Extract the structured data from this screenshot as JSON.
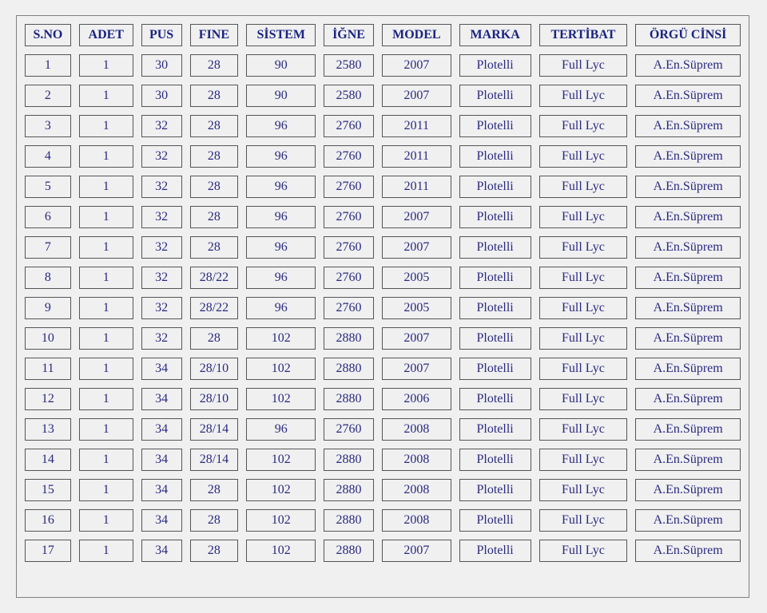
{
  "colors": {
    "header_text": "#1a2380",
    "cell_text": "#2a2a80",
    "cell_border": "#555555",
    "background": "#f0f0f0"
  },
  "table": {
    "headers": [
      "S.NO",
      "ADET",
      "PUS",
      "FINE",
      "SİSTEM",
      "İĞNE",
      "MODEL",
      "MARKA",
      "TERTİBAT",
      "ÖRGÜ CİNSİ"
    ],
    "rows": [
      [
        "1",
        "1",
        "30",
        "28",
        "90",
        "2580",
        "2007",
        "Plotelli",
        "Full Lyc",
        "A.En.Süprem"
      ],
      [
        "2",
        "1",
        "30",
        "28",
        "90",
        "2580",
        "2007",
        "Plotelli",
        "Full Lyc",
        "A.En.Süprem"
      ],
      [
        "3",
        "1",
        "32",
        "28",
        "96",
        "2760",
        "2011",
        "Plotelli",
        "Full Lyc",
        "A.En.Süprem"
      ],
      [
        "4",
        "1",
        "32",
        "28",
        "96",
        "2760",
        "2011",
        "Plotelli",
        "Full Lyc",
        "A.En.Süprem"
      ],
      [
        "5",
        "1",
        "32",
        "28",
        "96",
        "2760",
        "2011",
        "Plotelli",
        "Full Lyc",
        "A.En.Süprem"
      ],
      [
        "6",
        "1",
        "32",
        "28",
        "96",
        "2760",
        "2007",
        "Plotelli",
        "Full Lyc",
        "A.En.Süprem"
      ],
      [
        "7",
        "1",
        "32",
        "28",
        "96",
        "2760",
        "2007",
        "Plotelli",
        "Full Lyc",
        "A.En.Süprem"
      ],
      [
        "8",
        "1",
        "32",
        "28/22",
        "96",
        "2760",
        "2005",
        "Plotelli",
        "Full Lyc",
        "A.En.Süprem"
      ],
      [
        "9",
        "1",
        "32",
        "28/22",
        "96",
        "2760",
        "2005",
        "Plotelli",
        "Full Lyc",
        "A.En.Süprem"
      ],
      [
        "10",
        "1",
        "32",
        "28",
        "102",
        "2880",
        "2007",
        "Plotelli",
        "Full Lyc",
        "A.En.Süprem"
      ],
      [
        "11",
        "1",
        "34",
        "28/10",
        "102",
        "2880",
        "2007",
        "Plotelli",
        "Full Lyc",
        "A.En.Süprem"
      ],
      [
        "12",
        "1",
        "34",
        "28/10",
        "102",
        "2880",
        "2006",
        "Plotelli",
        "Full Lyc",
        "A.En.Süprem"
      ],
      [
        "13",
        "1",
        "34",
        "28/14",
        "96",
        "2760",
        "2008",
        "Plotelli",
        "Full Lyc",
        "A.En.Süprem"
      ],
      [
        "14",
        "1",
        "34",
        "28/14",
        "102",
        "2880",
        "2008",
        "Plotelli",
        "Full Lyc",
        "A.En.Süprem"
      ],
      [
        "15",
        "1",
        "34",
        "28",
        "102",
        "2880",
        "2008",
        "Plotelli",
        "Full Lyc",
        "A.En.Süprem"
      ],
      [
        "16",
        "1",
        "34",
        "28",
        "102",
        "2880",
        "2008",
        "Plotelli",
        "Full Lyc",
        "A.En.Süprem"
      ],
      [
        "17",
        "1",
        "34",
        "28",
        "102",
        "2880",
        "2007",
        "Plotelli",
        "Full Lyc",
        "A.En.Süprem"
      ]
    ]
  }
}
